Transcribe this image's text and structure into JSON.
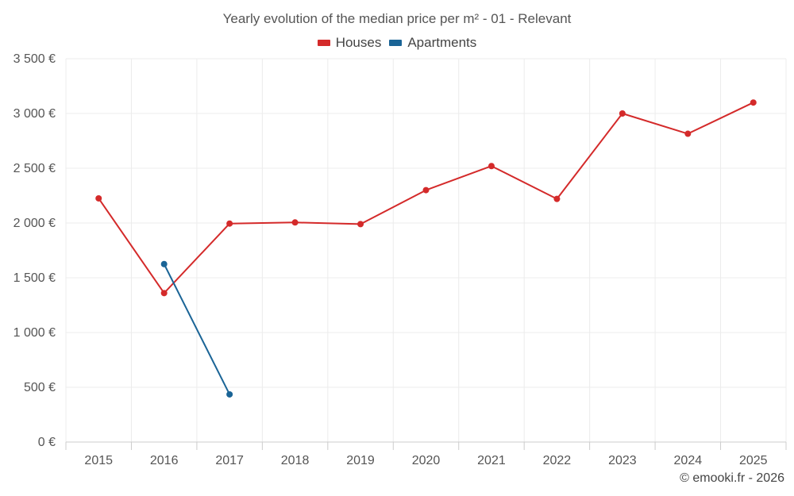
{
  "chart_data": {
    "type": "line",
    "title": "Yearly evolution of the median price per m² - 01 - Relevant",
    "categories": [
      "2015",
      "2016",
      "2017",
      "2018",
      "2019",
      "2020",
      "2021",
      "2022",
      "2023",
      "2024",
      "2025"
    ],
    "series": [
      {
        "name": "Houses",
        "color": "#d42a2a",
        "values": [
          2225,
          1360,
          1995,
          2005,
          1990,
          2300,
          2520,
          2220,
          3000,
          2815,
          3100
        ]
      },
      {
        "name": "Apartments",
        "color": "#1a6496",
        "values": [
          null,
          1625,
          435,
          null,
          null,
          null,
          null,
          null,
          null,
          null,
          null
        ]
      }
    ],
    "ylim": [
      0,
      3500
    ],
    "yticks": [
      0,
      500,
      1000,
      1500,
      2000,
      2500,
      3000,
      3500
    ],
    "ytick_labels": [
      "0 €",
      "500 €",
      "1 000 €",
      "1 500 €",
      "2 000 €",
      "2 500 €",
      "3 000 €",
      "3 500 €"
    ],
    "grid": true,
    "legend_position": "top-center",
    "xlabel": "",
    "ylabel": ""
  },
  "footer": {
    "credit": "© emooki.fr - 2026"
  }
}
